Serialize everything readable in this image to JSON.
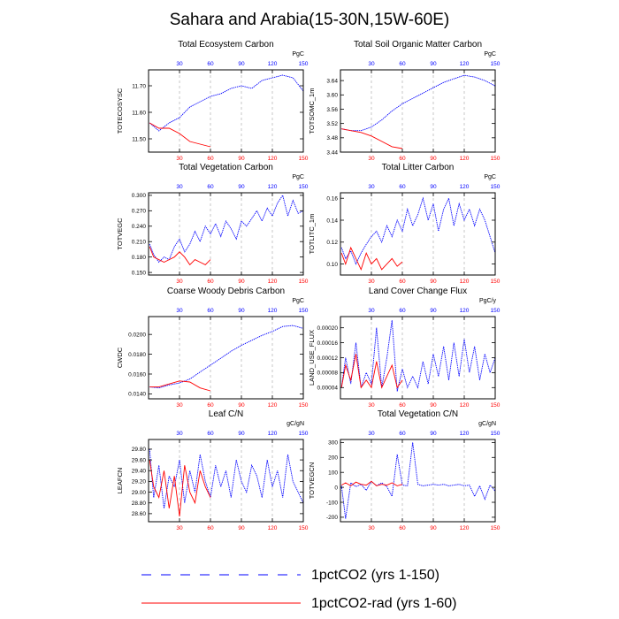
{
  "figure_title": "Sahara and Arabia(15-30N,15W-60E)",
  "legend": [
    {
      "label": "1pctCO2 (yrs 1-150)",
      "color": "#0000ff",
      "dash": true
    },
    {
      "label": "1pctCO2-rad (yrs 1-60)",
      "color": "#ff0000",
      "dash": false
    }
  ],
  "x_bottom_ticks": [
    "30",
    "60",
    "90",
    "120",
    "150"
  ],
  "x_top_ticks": [
    "30",
    "60",
    "90",
    "120",
    "150"
  ],
  "chart_data": [
    {
      "type": "line",
      "title": "Total Ecosystem Carbon",
      "ylabel": "TOTECOSYSC",
      "unit": "PgC",
      "ylim": [
        11.45,
        11.76
      ],
      "yticks": [
        11.5,
        11.6,
        11.7
      ],
      "ytick_labels": [
        "11.50",
        "11.60",
        "11.70"
      ],
      "xlim": [
        0,
        150
      ],
      "series": [
        {
          "name": "1pctCO2 (yrs 1-150)",
          "color": "#0000ff",
          "x": [
            1,
            10,
            20,
            30,
            40,
            50,
            60,
            70,
            80,
            90,
            100,
            110,
            120,
            130,
            140,
            150
          ],
          "values": [
            11.56,
            11.53,
            11.56,
            11.58,
            11.62,
            11.64,
            11.66,
            11.67,
            11.69,
            11.7,
            11.69,
            11.72,
            11.73,
            11.74,
            11.73,
            11.68
          ]
        },
        {
          "name": "1pctCO2-rad (yrs 1-60)",
          "color": "#ff0000",
          "x": [
            1,
            10,
            20,
            30,
            40,
            50,
            60
          ],
          "values": [
            11.56,
            11.54,
            11.54,
            11.52,
            11.49,
            11.48,
            11.47
          ]
        }
      ]
    },
    {
      "type": "line",
      "title": "Total Soil Organic Matter Carbon",
      "ylabel": "TOTSOMC_1m",
      "unit": "PgC",
      "ylim": [
        3.44,
        3.67
      ],
      "yticks": [
        3.44,
        3.48,
        3.52,
        3.56,
        3.6,
        3.64
      ],
      "ytick_labels": [
        "3.44",
        "3.48",
        "3.52",
        "3.56",
        "3.60",
        "3.64"
      ],
      "xlim": [
        0,
        150
      ],
      "series": [
        {
          "name": "1pctCO2 (yrs 1-150)",
          "color": "#0000ff",
          "x": [
            1,
            10,
            20,
            30,
            40,
            50,
            60,
            70,
            80,
            90,
            100,
            110,
            120,
            130,
            140,
            150
          ],
          "values": [
            3.505,
            3.5,
            3.5,
            3.51,
            3.53,
            3.555,
            3.575,
            3.59,
            3.605,
            3.62,
            3.635,
            3.645,
            3.655,
            3.65,
            3.64,
            3.625
          ]
        },
        {
          "name": "1pctCO2-rad (yrs 1-60)",
          "color": "#ff0000",
          "x": [
            1,
            10,
            20,
            30,
            40,
            50,
            60
          ],
          "values": [
            3.505,
            3.5,
            3.495,
            3.485,
            3.47,
            3.455,
            3.45
          ]
        }
      ]
    },
    {
      "type": "line",
      "title": "Total Vegetation Carbon",
      "ylabel": "TOTVEGC",
      "unit": "PgC",
      "ylim": [
        0.145,
        0.305
      ],
      "yticks": [
        0.15,
        0.18,
        0.21,
        0.24,
        0.27,
        0.3
      ],
      "ytick_labels": [
        "0.150",
        "0.180",
        "0.210",
        "0.240",
        "0.270",
        "0.300"
      ],
      "xlim": [
        0,
        150
      ],
      "series": [
        {
          "name": "1pctCO2 (yrs 1-150)",
          "color": "#0000ff",
          "x": [
            1,
            5,
            10,
            15,
            20,
            25,
            30,
            35,
            40,
            45,
            50,
            55,
            60,
            65,
            70,
            75,
            80,
            85,
            90,
            95,
            100,
            105,
            110,
            115,
            120,
            125,
            130,
            135,
            140,
            145,
            150
          ],
          "values": [
            0.205,
            0.185,
            0.17,
            0.18,
            0.175,
            0.2,
            0.215,
            0.19,
            0.205,
            0.23,
            0.21,
            0.24,
            0.225,
            0.245,
            0.22,
            0.25,
            0.235,
            0.215,
            0.25,
            0.24,
            0.255,
            0.27,
            0.25,
            0.275,
            0.26,
            0.285,
            0.3,
            0.26,
            0.29,
            0.265,
            0.27
          ]
        },
        {
          "name": "1pctCO2-rad (yrs 1-60)",
          "color": "#ff0000",
          "x": [
            1,
            5,
            10,
            15,
            20,
            25,
            30,
            35,
            40,
            45,
            50,
            55,
            60
          ],
          "values": [
            0.2,
            0.18,
            0.175,
            0.17,
            0.175,
            0.18,
            0.19,
            0.18,
            0.165,
            0.175,
            0.17,
            0.165,
            0.175
          ]
        }
      ]
    },
    {
      "type": "line",
      "title": "Total Litter Carbon",
      "ylabel": "TOTLITC_1m",
      "unit": "PgC",
      "ylim": [
        0.09,
        0.165
      ],
      "yticks": [
        0.1,
        0.12,
        0.14,
        0.16
      ],
      "ytick_labels": [
        "0.10",
        "0.12",
        "0.14",
        "0.16"
      ],
      "xlim": [
        0,
        150
      ],
      "series": [
        {
          "name": "1pctCO2 (yrs 1-150)",
          "color": "#0000ff",
          "x": [
            1,
            5,
            10,
            15,
            20,
            25,
            30,
            35,
            40,
            45,
            50,
            55,
            60,
            65,
            70,
            75,
            80,
            85,
            90,
            95,
            100,
            105,
            110,
            115,
            120,
            125,
            130,
            135,
            140,
            145,
            150
          ],
          "values": [
            0.115,
            0.105,
            0.112,
            0.1,
            0.11,
            0.118,
            0.125,
            0.13,
            0.12,
            0.135,
            0.125,
            0.14,
            0.13,
            0.15,
            0.135,
            0.145,
            0.16,
            0.14,
            0.155,
            0.13,
            0.15,
            0.16,
            0.135,
            0.155,
            0.14,
            0.15,
            0.135,
            0.15,
            0.14,
            0.125,
            0.11
          ]
        },
        {
          "name": "1pctCO2-rad (yrs 1-60)",
          "color": "#ff0000",
          "x": [
            1,
            5,
            10,
            15,
            20,
            25,
            30,
            35,
            40,
            45,
            50,
            55,
            60
          ],
          "values": [
            0.11,
            0.1,
            0.115,
            0.105,
            0.095,
            0.11,
            0.1,
            0.105,
            0.095,
            0.1,
            0.105,
            0.098,
            0.102
          ]
        }
      ]
    },
    {
      "type": "line",
      "title": "Coarse Woody Debris Carbon",
      "ylabel": "CWDC",
      "unit": "PgC",
      "ylim": [
        0.0135,
        0.0218
      ],
      "yticks": [
        0.014,
        0.016,
        0.018,
        0.02
      ],
      "ytick_labels": [
        "0.0140",
        "0.0160",
        "0.0180",
        "0.0200"
      ],
      "xlim": [
        0,
        150
      ],
      "series": [
        {
          "name": "1pctCO2 (yrs 1-150)",
          "color": "#0000ff",
          "x": [
            1,
            10,
            20,
            30,
            40,
            50,
            60,
            70,
            80,
            90,
            100,
            110,
            120,
            130,
            140,
            150
          ],
          "values": [
            0.0147,
            0.0146,
            0.0149,
            0.0151,
            0.0155,
            0.0162,
            0.0169,
            0.0176,
            0.0183,
            0.0189,
            0.0194,
            0.0199,
            0.0203,
            0.0208,
            0.0209,
            0.0206
          ]
        },
        {
          "name": "1pctCO2-rad (yrs 1-60)",
          "color": "#ff0000",
          "x": [
            1,
            10,
            20,
            30,
            40,
            50,
            60
          ],
          "values": [
            0.0147,
            0.0147,
            0.015,
            0.0153,
            0.0152,
            0.0146,
            0.0143
          ]
        }
      ]
    },
    {
      "type": "line",
      "title": "Land Cover Change Flux",
      "ylabel": "LAND_USE_FLUX",
      "unit": "PgC/y",
      "ylim": [
        1e-05,
        0.00023
      ],
      "yticks": [
        4e-05,
        8e-05,
        0.00012,
        0.00016,
        0.0002
      ],
      "ytick_labels": [
        "0.00004",
        "0.00008",
        "0.00012",
        "0.00016",
        "0.00020"
      ],
      "xlim": [
        0,
        150
      ],
      "series": [
        {
          "name": "1pctCO2 (yrs 1-150)",
          "color": "#0000ff",
          "x": [
            1,
            5,
            10,
            15,
            20,
            25,
            30,
            35,
            40,
            45,
            50,
            55,
            60,
            65,
            70,
            75,
            80,
            85,
            90,
            95,
            100,
            105,
            110,
            115,
            120,
            125,
            130,
            135,
            140,
            145,
            150
          ],
          "values": [
            4e-05,
            0.00012,
            5e-05,
            0.00016,
            4e-05,
            8e-05,
            5e-05,
            0.0002,
            4e-05,
            0.00012,
            0.00022,
            3e-05,
            9e-05,
            4e-05,
            7e-05,
            4e-05,
            0.00011,
            5e-05,
            0.00013,
            7e-05,
            0.00015,
            6e-05,
            0.00016,
            7e-05,
            0.00017,
            8e-05,
            0.00015,
            6e-05,
            0.00013,
            8e-05,
            0.00012
          ]
        },
        {
          "name": "1pctCO2-rad (yrs 1-60)",
          "color": "#ff0000",
          "x": [
            1,
            5,
            10,
            15,
            20,
            25,
            30,
            35,
            40,
            45,
            50,
            55,
            60
          ],
          "values": [
            4e-05,
            0.0001,
            6e-05,
            0.00013,
            4e-05,
            6e-05,
            4e-05,
            0.00011,
            4e-05,
            7e-05,
            0.0001,
            4e-05,
            6e-05
          ]
        }
      ]
    },
    {
      "type": "line",
      "title": "Leaf C/N",
      "ylabel": "LEAFCN",
      "unit": "gC/gN",
      "ylim": [
        28.45,
        29.98
      ],
      "yticks": [
        28.6,
        28.8,
        29.0,
        29.2,
        29.4,
        29.6,
        29.8
      ],
      "ytick_labels": [
        "28.60",
        "28.80",
        "29.00",
        "29.20",
        "29.40",
        "29.60",
        "29.80"
      ],
      "xlim": [
        0,
        150
      ],
      "series": [
        {
          "name": "1pctCO2 (yrs 1-150)",
          "color": "#0000ff",
          "x": [
            1,
            5,
            10,
            15,
            20,
            25,
            30,
            35,
            40,
            45,
            50,
            55,
            60,
            65,
            70,
            75,
            80,
            85,
            90,
            95,
            100,
            105,
            110,
            115,
            120,
            125,
            130,
            135,
            140,
            145,
            150
          ],
          "values": [
            29.8,
            28.9,
            29.5,
            28.7,
            29.3,
            29.1,
            29.6,
            28.8,
            29.4,
            29.0,
            29.7,
            29.2,
            28.9,
            29.5,
            29.1,
            29.4,
            28.9,
            29.6,
            29.2,
            29.0,
            29.5,
            29.3,
            28.9,
            29.6,
            29.1,
            29.4,
            28.9,
            29.7,
            29.2,
            29.0,
            28.8
          ]
        },
        {
          "name": "1pctCO2-rad (yrs 1-60)",
          "color": "#ff0000",
          "x": [
            1,
            5,
            10,
            15,
            20,
            25,
            30,
            35,
            40,
            45,
            50,
            55,
            60
          ],
          "values": [
            29.6,
            29.1,
            28.9,
            29.4,
            28.7,
            29.3,
            28.55,
            29.5,
            29.0,
            28.8,
            29.4,
            29.1,
            28.9
          ]
        }
      ]
    },
    {
      "type": "line",
      "title": "Total Vegetation C/N",
      "ylabel": "TOTVEGCN",
      "unit": "gC/gN",
      "ylim": [
        -230,
        320
      ],
      "yticks": [
        -200,
        -100,
        0,
        100,
        200,
        300
      ],
      "ytick_labels": [
        "-200",
        "-100",
        "0",
        "100",
        "200",
        "300"
      ],
      "xlim": [
        0,
        150
      ],
      "series": [
        {
          "name": "1pctCO2 (yrs 1-150)",
          "color": "#0000ff",
          "x": [
            1,
            5,
            10,
            15,
            20,
            25,
            30,
            35,
            40,
            45,
            50,
            55,
            60,
            65,
            70,
            75,
            80,
            85,
            90,
            95,
            100,
            105,
            110,
            115,
            120,
            125,
            130,
            135,
            140,
            145,
            150
          ],
          "values": [
            10,
            -210,
            30,
            5,
            20,
            -20,
            40,
            10,
            30,
            5,
            -60,
            220,
            15,
            10,
            300,
            20,
            10,
            15,
            20,
            15,
            20,
            10,
            15,
            20,
            10,
            15,
            -60,
            10,
            -80,
            15,
            -25
          ]
        },
        {
          "name": "1pctCO2-rad (yrs 1-60)",
          "color": "#ff0000",
          "x": [
            1,
            5,
            10,
            15,
            20,
            25,
            30,
            35,
            40,
            45,
            50,
            55,
            60
          ],
          "values": [
            15,
            30,
            10,
            35,
            20,
            15,
            40,
            10,
            20,
            15,
            30,
            10,
            20
          ]
        }
      ]
    }
  ]
}
